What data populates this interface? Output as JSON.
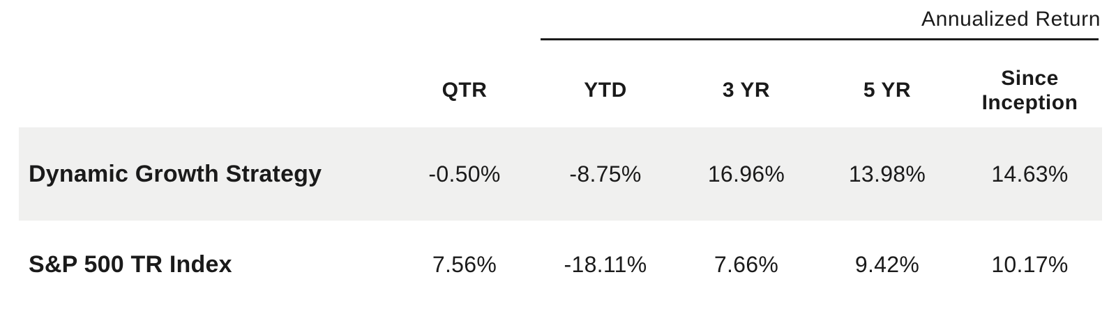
{
  "header": {
    "group_label": "Annualized Return"
  },
  "table": {
    "columns": [
      {
        "label": "QTR"
      },
      {
        "label": "YTD"
      },
      {
        "label": "3 YR"
      },
      {
        "label": "5 YR"
      },
      {
        "label": "Since Inception"
      }
    ],
    "rows": [
      {
        "label": "Dynamic Growth Strategy",
        "values": [
          "-0.50%",
          "-8.75%",
          "16.96%",
          "13.98%",
          "14.63%"
        ]
      },
      {
        "label": "S&P 500 TR Index",
        "values": [
          "7.56%",
          "-18.11%",
          "7.66%",
          "9.42%",
          "10.17%"
        ]
      }
    ]
  },
  "colors": {
    "text": "#1a1a1a",
    "highlight_row_bg": "#f0f0ef",
    "rule": "#1a1a1a"
  },
  "chart_data": {
    "type": "table",
    "title": "Annualized Return",
    "columns": [
      "",
      "QTR",
      "YTD",
      "3 YR",
      "5 YR",
      "Since Inception"
    ],
    "rows": [
      [
        "Dynamic Growth Strategy",
        "-0.50%",
        "-8.75%",
        "16.96%",
        "13.98%",
        "14.63%"
      ],
      [
        "S&P 500 TR Index",
        "7.56%",
        "-18.11%",
        "7.66%",
        "9.42%",
        "10.17%"
      ]
    ],
    "notes": "Columns under the rule (YTD through Since Inception) are grouped as Annualized Return; first data row is highlighted with a light gray band."
  }
}
